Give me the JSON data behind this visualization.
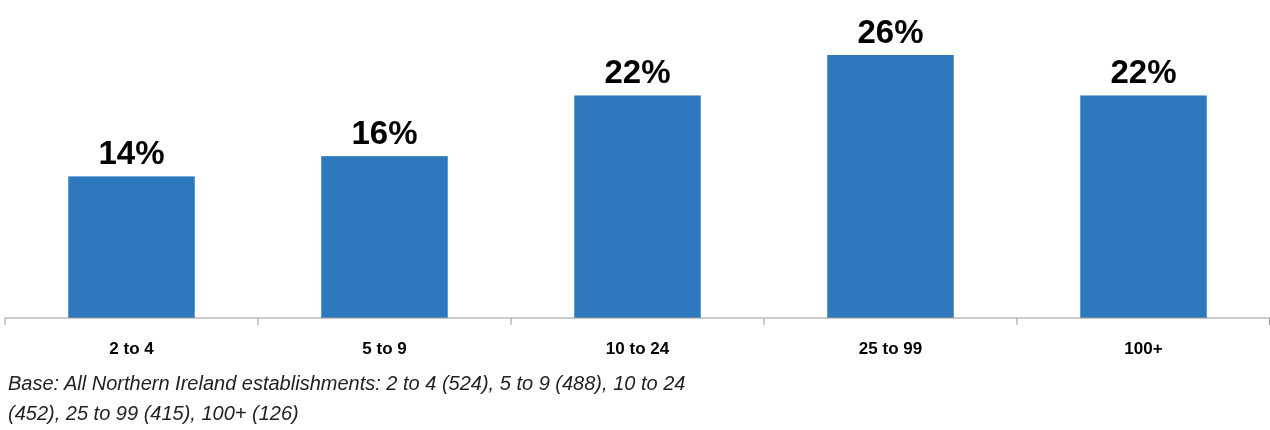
{
  "chart_data": {
    "type": "bar",
    "categories": [
      "2 to 4",
      "5 to 9",
      "10 to 24",
      "25 to 99",
      "100+"
    ],
    "values": [
      14,
      16,
      22,
      26,
      22
    ],
    "value_labels": [
      "14%",
      "16%",
      "22%",
      "26%",
      "22%"
    ],
    "color": "#2e79be",
    "annotations": [
      "Base: All Northern Ireland establishments: 2 to 4 (524), 5 to 9 (488), 10 to 24 (452), 25 to 99 (415), 100+ (126)"
    ]
  }
}
